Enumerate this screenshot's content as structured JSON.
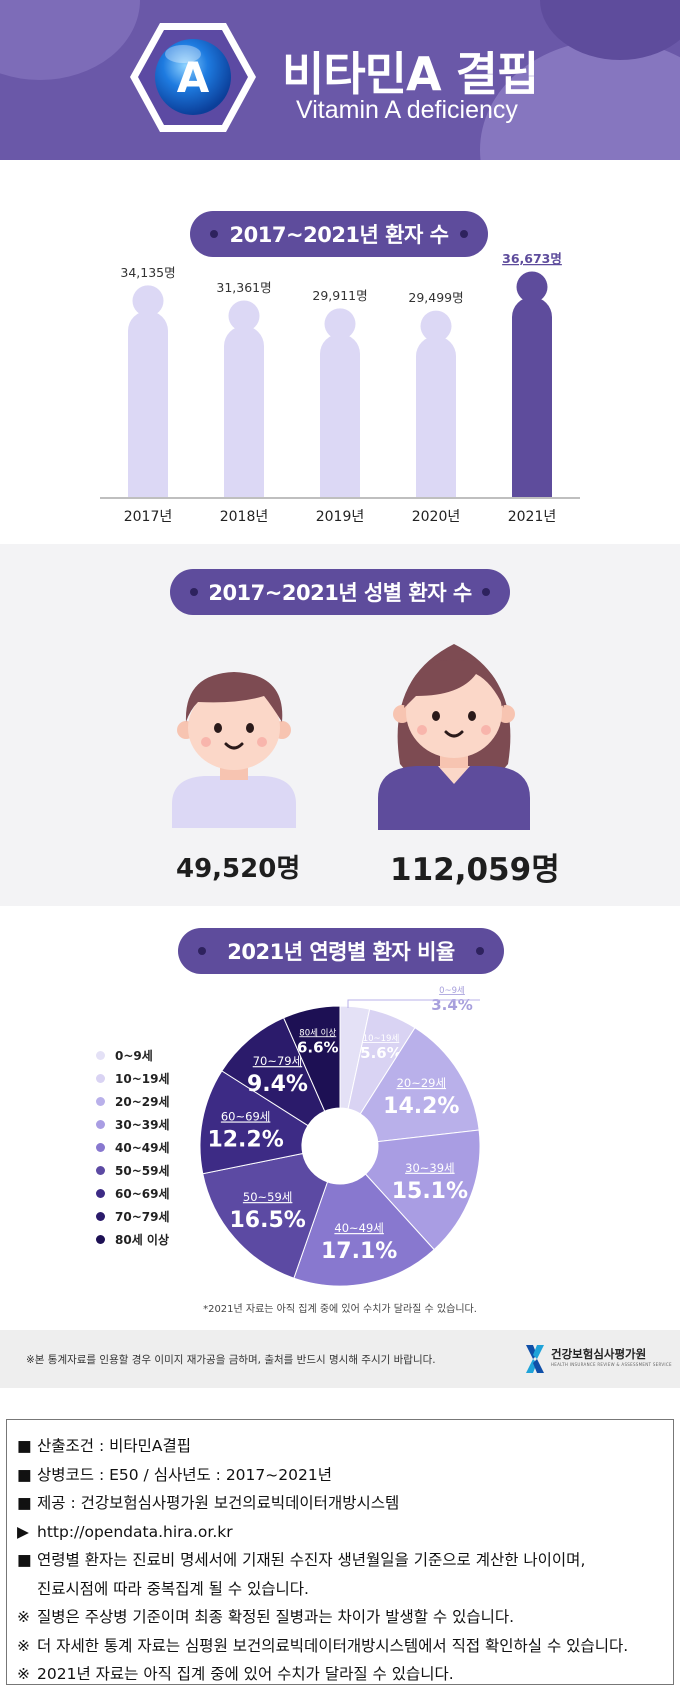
{
  "header": {
    "title_ko": "비타민A 결핍",
    "title_en": "Vitamin A deficiency",
    "badge_letter": "A",
    "colors": {
      "primary": "#6a58a8",
      "dark": "#5e4c9c",
      "light": "#dcd8f5"
    }
  },
  "section1": {
    "heading": "2017~2021년 환자 수",
    "chart_data": {
      "type": "bar",
      "categories": [
        "2017년",
        "2018년",
        "2019년",
        "2020년",
        "2021년"
      ],
      "values": [
        34135,
        31361,
        29911,
        29499,
        36673
      ],
      "value_labels": [
        "34,135명",
        "31,361명",
        "29,911명",
        "29,499명",
        "36,673명"
      ],
      "highlight_index": 4,
      "ylim": [
        0,
        40000
      ]
    }
  },
  "section2": {
    "heading": "2017~2021년 성별 환자 수",
    "male_value": "49,520명",
    "female_value": "112,059명"
  },
  "section3": {
    "heading": "2021년 연령별 환자 비율",
    "note": "*2021년 자료는 아직 집계 중에 있어 수치가 달라질 수 있습니다.",
    "chart_data": {
      "type": "pie",
      "categories": [
        "0~9세",
        "10~19세",
        "20~29세",
        "30~39세",
        "40~49세",
        "50~59세",
        "60~69세",
        "70~79세",
        "80세 이상"
      ],
      "values": [
        3.4,
        5.6,
        14.2,
        15.1,
        17.1,
        16.5,
        12.2,
        9.4,
        6.6
      ],
      "value_labels": [
        "3.4%",
        "5.6%",
        "14.2%",
        "15.1%",
        "17.1%",
        "16.5%",
        "12.2%",
        "9.4%",
        "6.6%"
      ],
      "colors": [
        "#e4e1f6",
        "#d9d3f3",
        "#b9b0ea",
        "#a99de3",
        "#8878cf",
        "#5c4aa3",
        "#3d2b85",
        "#2b1b6b",
        "#1d1054"
      ],
      "legend": [
        "0~9세",
        "10~19세",
        "20~29세",
        "30~39세",
        "40~49세",
        "50~59세",
        "60~69세",
        "70~79세",
        "80세 이상"
      ],
      "legend_colors": [
        "#e4e1f6",
        "#d9d3f3",
        "#b9b0ea",
        "#a99de3",
        "#8878cf",
        "#5c4aa3",
        "#3d2b85",
        "#2b1b6b",
        "#1d1054"
      ]
    }
  },
  "footer_strip": {
    "notice": "※본 통계자료를 인용할 경우 이미지 재가공을 금하며, 출처를 반드시 명시해 주시기 바랍니다.",
    "org_name": "건강보험심사평가원",
    "org_sub": "HEALTH INSURANCE REVIEW & ASSESSMENT SERVICE"
  },
  "info": {
    "lines": [
      {
        "bullet": "■",
        "text": "산출조건 : 비타민A결핍"
      },
      {
        "bullet": "■",
        "text": "상병코드 : E50 / 심사년도 : 2017~2021년"
      },
      {
        "bullet": "■",
        "text": "제공 : 건강보험심사평가원 보건의료빅데이터개방시스템"
      },
      {
        "bullet": "▶",
        "text": "http://opendata.hira.or.kr"
      },
      {
        "bullet": "■",
        "text": "연령별 환자는 진료비 명세서에 기재된 수진자 생년월일을 기준으로 계산한 나이이며,"
      },
      {
        "bullet": "",
        "text": "진료시점에 따라 중복집계 될 수 있습니다."
      },
      {
        "bullet": "※",
        "text": "질병은 주상병 기준이며 최종 확정된 질병과는 차이가 발생할 수 있습니다."
      },
      {
        "bullet": "※",
        "text": "더 자세한 통계 자료는 심평원 보건의료빅데이터개방시스템에서 직접 확인하실 수 있습니다."
      },
      {
        "bullet": "※",
        "text": "2021년 자료는 아직 집계 중에 있어 수치가 달라질 수 있습니다."
      }
    ]
  }
}
